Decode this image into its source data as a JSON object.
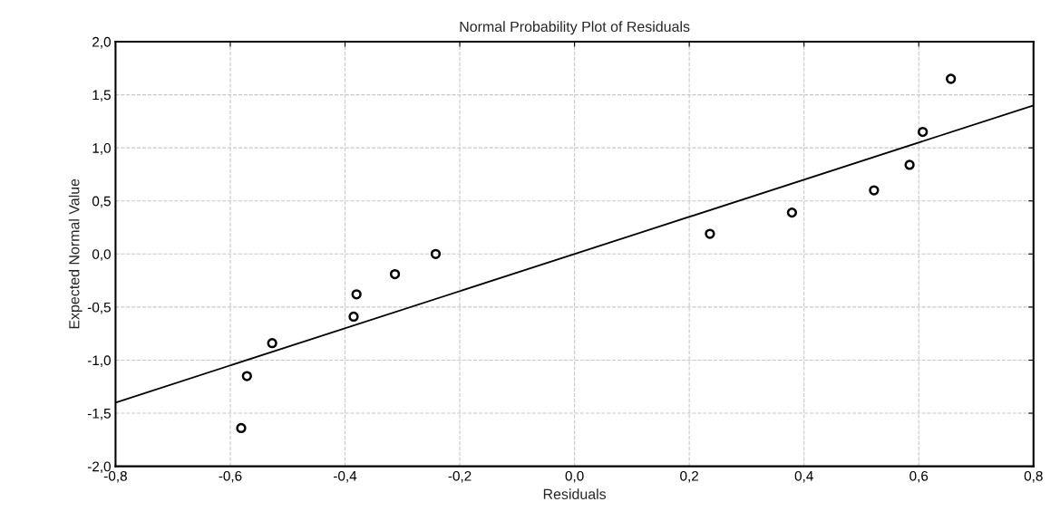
{
  "chart_data": {
    "type": "scatter",
    "title": "Normal Probability Plot of Residuals",
    "xlabel": "Residuals",
    "ylabel": "Expected Normal Value",
    "series": [
      {
        "color": "#000000",
        "marker": "circle",
        "x": [
          -0.581,
          -0.571,
          -0.527,
          -0.385,
          -0.38,
          -0.313,
          -0.242,
          0.236,
          0.379,
          0.522,
          0.584,
          0.607,
          0.656
        ],
        "values": [
          -1.64,
          -1.15,
          -0.84,
          -0.59,
          -0.38,
          -0.19,
          0.0,
          0.19,
          0.39,
          0.6,
          0.84,
          1.15,
          1.65
        ]
      },
      {
        "type": "line",
        "color": "#000000",
        "line_style": "solid",
        "x": [
          -0.8,
          0.8
        ],
        "values": [
          -1.4,
          1.4
        ]
      }
    ],
    "xlim": [
      -0.8,
      0.8
    ],
    "ylim": [
      -2.0,
      2.0
    ],
    "xticks": [
      {
        "value": -0.8,
        "label": "-0,8"
      },
      {
        "value": -0.6,
        "label": "-0,6"
      },
      {
        "value": -0.4,
        "label": "-0,4"
      },
      {
        "value": -0.2,
        "label": "-0,2"
      },
      {
        "value": 0.0,
        "label": "0,0"
      },
      {
        "value": 0.2,
        "label": "0,2"
      },
      {
        "value": 0.4,
        "label": "0,4"
      },
      {
        "value": 0.6,
        "label": "0,6"
      },
      {
        "value": 0.8,
        "label": "0,8"
      }
    ],
    "yticks": [
      {
        "value": -2.0,
        "label": "-2,0"
      },
      {
        "value": -1.5,
        "label": "-1,5"
      },
      {
        "value": -1.0,
        "label": "-1,0"
      },
      {
        "value": -0.5,
        "label": "-0,5"
      },
      {
        "value": 0.0,
        "label": "0,0"
      },
      {
        "value": 0.5,
        "label": "0,5"
      },
      {
        "value": 1.0,
        "label": "1,0"
      },
      {
        "value": 1.5,
        "label": "1,5"
      },
      {
        "value": 2.0,
        "label": "2,0"
      }
    ],
    "grid": true,
    "legend": false
  }
}
